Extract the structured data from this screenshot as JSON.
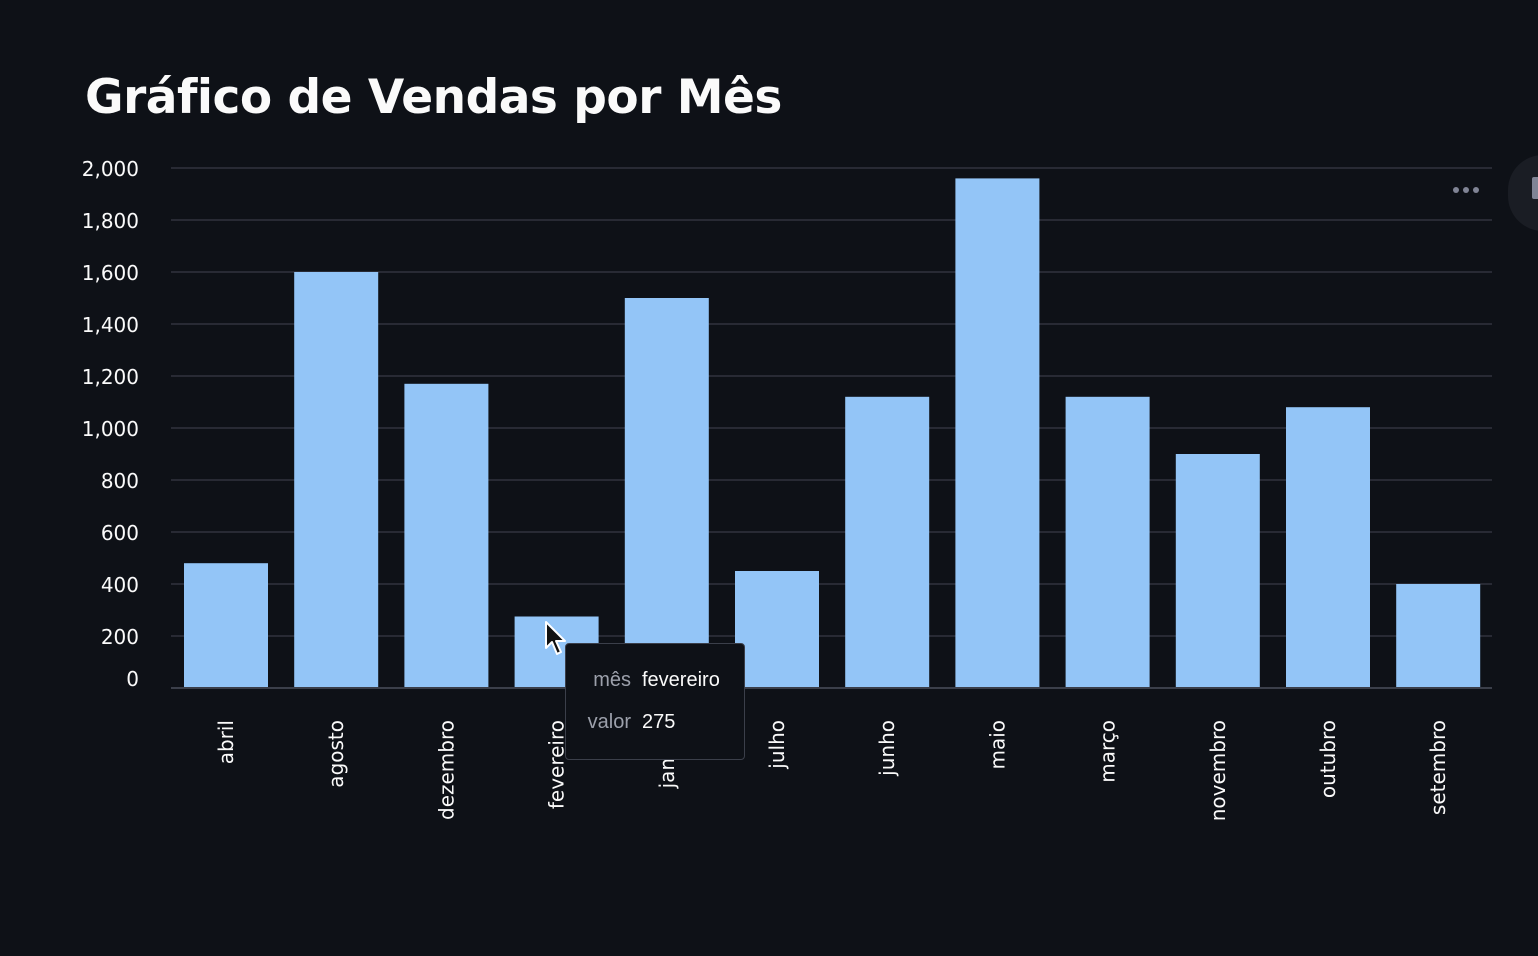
{
  "title": "Gráfico de Vendas por Mês",
  "chart_data": {
    "type": "bar",
    "title": "Gráfico de Vendas por Mês",
    "xlabel": "",
    "ylabel": "",
    "categories": [
      "abril",
      "agosto",
      "dezembro",
      "fevereiro",
      "janeiro",
      "julho",
      "junho",
      "maio",
      "março",
      "novembro",
      "outubro",
      "setembro"
    ],
    "values": [
      480,
      1600,
      1170,
      275,
      1500,
      450,
      1120,
      1960,
      1120,
      900,
      1080,
      400
    ],
    "ylim": [
      0,
      2000
    ],
    "yticks": [
      0,
      200,
      400,
      600,
      800,
      1000,
      1200,
      1400,
      1600,
      1800,
      2000
    ],
    "ytick_labels": [
      "0",
      "200",
      "400",
      "600",
      "800",
      "1,000",
      "1,200",
      "1,400",
      "1,600",
      "1,800",
      "2,000"
    ],
    "grid": true,
    "bar_color": "#93c5f7",
    "grid_color": "#31333f",
    "label_color": "#fafafa"
  },
  "tooltip": {
    "rows": [
      {
        "key": "mês",
        "value": "fevereiro"
      },
      {
        "key": "valor",
        "value": "275"
      }
    ]
  },
  "icons": {
    "menu": "more-horizontal-icon",
    "cursor": "mouse-pointer-icon"
  },
  "colors": {
    "background": "#0e1117",
    "text": "#fafafa",
    "muted": "#9ca0ab"
  }
}
